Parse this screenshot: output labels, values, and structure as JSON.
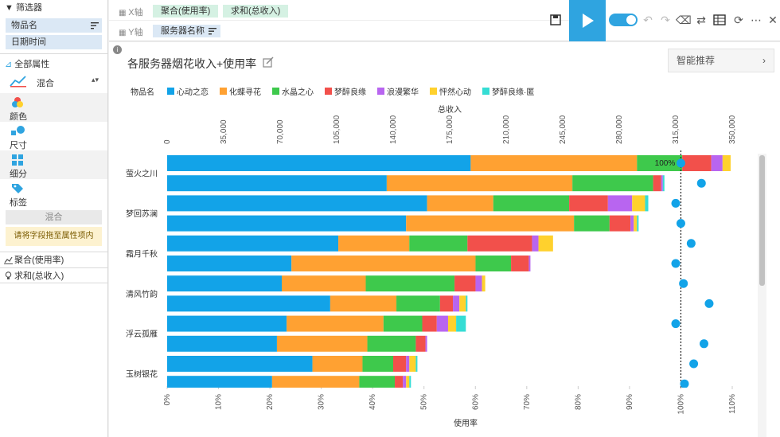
{
  "left_panel": {
    "filter_title": "筛选器",
    "fields": [
      "物品名",
      "日期时间"
    ],
    "all_props": "全部属性",
    "chart_type": "混合",
    "props": [
      {
        "label": "颜色",
        "icon": "color-icon"
      },
      {
        "label": "尺寸",
        "icon": "size-icon"
      },
      {
        "label": "细分",
        "icon": "detail-icon"
      },
      {
        "label": "标签",
        "icon": "label-icon"
      }
    ],
    "mix_label": "混合",
    "drop_hint": "请将字段拖至属性项内",
    "agg_items": [
      "聚合(使用率)",
      "求和(总收入)"
    ]
  },
  "toolbar": {
    "x_axis_label": "X轴",
    "y_axis_label": "Y轴",
    "x_fields": [
      "聚合(使用率)",
      "求和(总收入)"
    ],
    "y_fields": [
      "服务器名称"
    ]
  },
  "chart": {
    "title": "各服务器烟花收入+使用率",
    "smart_recommend": "智能推荐",
    "legend_title": "物品名",
    "annotation": "100%"
  },
  "colors": {
    "accent": "#2fa4e0",
    "series": [
      "#12a3e8",
      "#ffa132",
      "#3ec94c",
      "#f2504b",
      "#b865f0",
      "#ffd12d",
      "#35ddd4"
    ]
  },
  "chart_data": {
    "type": "bar",
    "stacked": true,
    "orientation": "horizontal",
    "top_axis": {
      "label": "总收入",
      "ticks": [
        "0",
        "35,000",
        "70,000",
        "105,000",
        "140,000",
        "175,000",
        "210,000",
        "245,000",
        "280,000",
        "315,000",
        "350,000"
      ],
      "range": [
        0,
        350000
      ]
    },
    "bottom_axis": {
      "label": "使用率",
      "ticks": [
        "0%",
        "10%",
        "20%",
        "30%",
        "40%",
        "50%",
        "60%",
        "70%",
        "80%",
        "90%",
        "100%",
        "110%"
      ],
      "range": [
        0,
        1.1
      ]
    },
    "y_labels": [
      "萤火之川",
      "",
      "梦回苏澜",
      "",
      "霜月千秋",
      "",
      "清风竹韵",
      "",
      "浮云孤雁",
      "",
      "玉树银花"
    ],
    "series_names": [
      "心动之恋",
      "化蝶寻花",
      "水晶之心",
      "梦醉良缘",
      "浪漫繁华",
      "怦然心动",
      "梦醉良缘·匿"
    ],
    "rows": [
      [
        188000,
        103000,
        28000,
        18000,
        7000,
        5000,
        0
      ],
      [
        136000,
        115000,
        50000,
        5000,
        1000,
        0,
        1000
      ],
      [
        161000,
        41000,
        47000,
        24000,
        15000,
        8000,
        2000
      ],
      [
        148000,
        104000,
        22000,
        13000,
        2000,
        2000,
        1000
      ],
      [
        106000,
        44000,
        36000,
        40000,
        4000,
        9000,
        0
      ],
      [
        77000,
        114000,
        22000,
        11000,
        1000,
        0,
        0
      ],
      [
        71000,
        52000,
        55000,
        13000,
        4000,
        2000,
        0
      ],
      [
        101000,
        41000,
        27000,
        8000,
        4000,
        4000,
        1000
      ],
      [
        74000,
        60000,
        24000,
        9000,
        7000,
        5000,
        6000
      ],
      [
        68000,
        56000,
        30000,
        6000,
        1000,
        0,
        0
      ],
      [
        90000,
        31000,
        19000,
        8000,
        2000,
        4000,
        1000
      ],
      [
        65000,
        54000,
        22000,
        5000,
        2000,
        2000,
        1000
      ]
    ],
    "usage": [
      1.0,
      1.04,
      0.99,
      1.0,
      1.02,
      0.99,
      1.005,
      1.055,
      0.99,
      1.045,
      1.025,
      1.007
    ],
    "reference_line": 1.0
  }
}
